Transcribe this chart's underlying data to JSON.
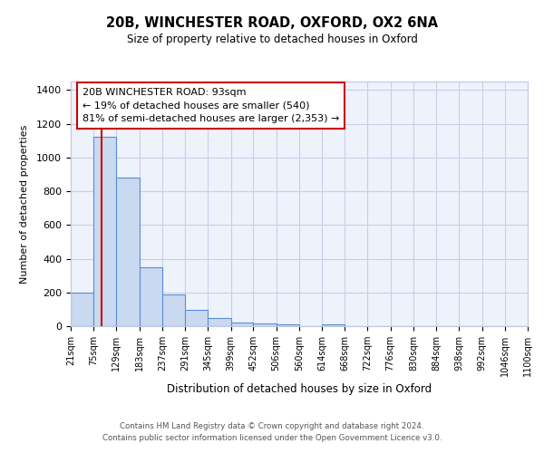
{
  "title": "20B, WINCHESTER ROAD, OXFORD, OX2 6NA",
  "subtitle": "Size of property relative to detached houses in Oxford",
  "xlabel": "Distribution of detached houses by size in Oxford",
  "ylabel": "Number of detached properties",
  "bar_color": "#c9d9f0",
  "bar_edge_color": "#5b8dd9",
  "background_color": "#eef2fb",
  "grid_color": "#c8d0e8",
  "bin_edges": [
    21,
    75,
    129,
    183,
    237,
    291,
    345,
    399,
    452,
    506,
    560,
    614,
    668,
    722,
    776,
    830,
    884,
    938,
    992,
    1046,
    1100
  ],
  "bin_labels": [
    "21sqm",
    "75sqm",
    "129sqm",
    "183sqm",
    "237sqm",
    "291sqm",
    "345sqm",
    "399sqm",
    "452sqm",
    "506sqm",
    "560sqm",
    "614sqm",
    "668sqm",
    "722sqm",
    "776sqm",
    "830sqm",
    "884sqm",
    "938sqm",
    "992sqm",
    "1046sqm",
    "1100sqm"
  ],
  "bar_heights": [
    200,
    1120,
    880,
    350,
    190,
    95,
    48,
    22,
    15,
    12,
    0,
    12,
    0,
    0,
    0,
    0,
    0,
    0,
    0,
    0
  ],
  "ylim": [
    0,
    1450
  ],
  "yticks": [
    0,
    200,
    400,
    600,
    800,
    1000,
    1200,
    1400
  ],
  "vline_x": 93,
  "vline_color": "#cc0000",
  "annotation_line1": "20B WINCHESTER ROAD: 93sqm",
  "annotation_line2": "← 19% of detached houses are smaller (540)",
  "annotation_line3": "81% of semi-detached houses are larger (2,353) →",
  "footer_line1": "Contains HM Land Registry data © Crown copyright and database right 2024.",
  "footer_line2": "Contains public sector information licensed under the Open Government Licence v3.0."
}
